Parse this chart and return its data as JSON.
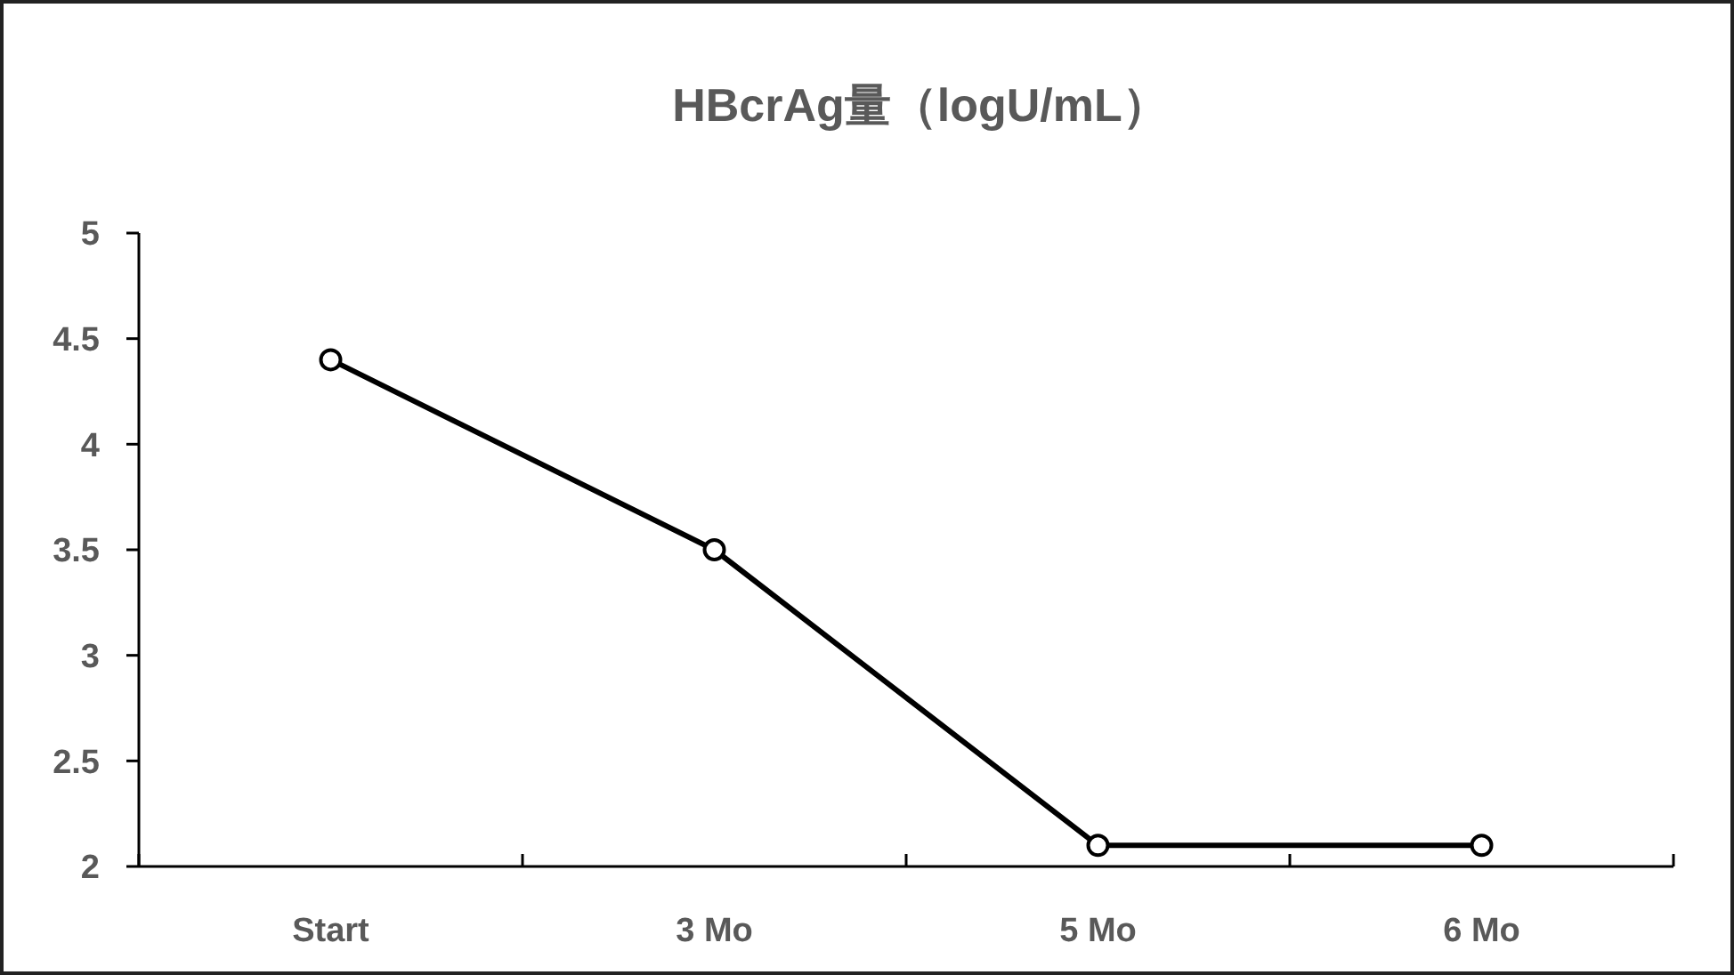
{
  "chart_data": {
    "type": "line",
    "title": "HBcrAg量（logU/mL）",
    "categories": [
      "Start",
      "3 Mo",
      "5 Mo",
      "6 Mo"
    ],
    "series": [
      {
        "color": "#000000",
        "values": [
          4.4,
          3.5,
          2.1,
          2.1
        ]
      }
    ],
    "ylim": [
      2,
      5
    ],
    "yticks": [
      2,
      2.5,
      3,
      3.5,
      4,
      4.5,
      5
    ],
    "marker": "circle",
    "line_style": "solid",
    "grid": false
  }
}
